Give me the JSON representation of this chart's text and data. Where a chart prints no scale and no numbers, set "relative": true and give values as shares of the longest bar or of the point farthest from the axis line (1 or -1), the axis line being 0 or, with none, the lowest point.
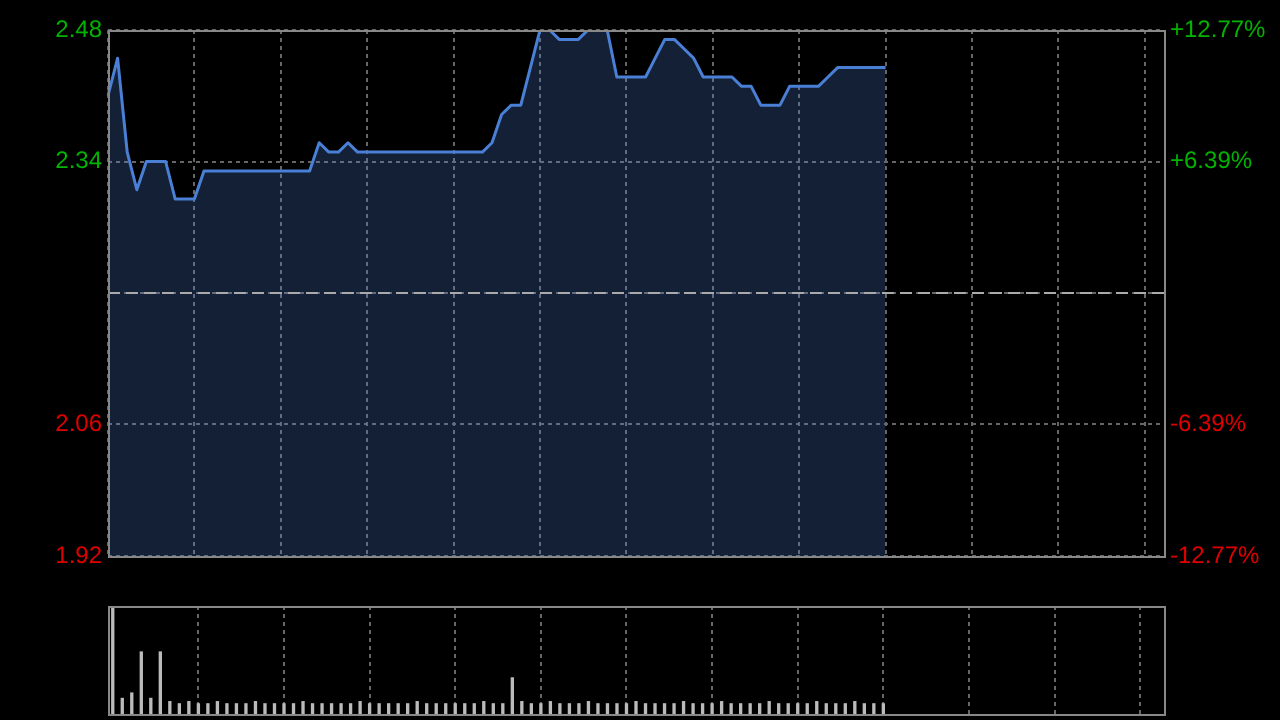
{
  "chart_data": [
    {
      "type": "area",
      "categories": [
        null,
        null,
        null,
        null,
        null,
        null,
        null,
        null,
        null,
        null,
        null,
        null,
        null,
        null,
        null,
        null,
        null,
        null,
        null,
        null,
        null,
        null,
        null,
        null,
        null,
        null,
        null,
        null,
        null,
        null,
        null,
        null,
        null,
        null,
        null,
        null,
        null,
        null,
        null,
        null,
        null,
        null,
        null,
        null,
        null,
        null,
        null,
        null,
        null,
        null,
        null,
        null,
        null,
        null,
        null,
        null,
        null,
        null,
        null,
        null,
        null,
        null,
        null,
        null,
        null,
        null,
        null,
        null,
        null,
        null,
        null,
        null,
        null,
        null,
        null,
        null,
        null,
        null,
        null,
        null,
        null,
        null,
        null,
        null,
        null,
        null,
        null,
        null,
        null,
        null,
        null,
        null,
        null,
        null,
        null,
        null,
        null,
        null,
        null,
        null,
        null,
        null,
        null,
        null,
        null,
        null,
        null,
        null,
        null,
        null,
        null
      ],
      "series": [
        {
          "color": "#4a7fd6",
          "values": [
            2.41,
            2.45,
            2.35,
            2.31,
            2.34,
            2.34,
            2.34,
            2.3,
            2.3,
            2.3,
            2.33,
            2.33,
            2.33,
            2.33,
            2.33,
            2.33,
            2.33,
            2.33,
            2.33,
            2.33,
            2.33,
            2.33,
            2.36,
            2.35,
            2.35,
            2.36,
            2.35,
            2.35,
            2.35,
            2.35,
            2.35,
            2.35,
            2.35,
            2.35,
            2.35,
            2.35,
            2.35,
            2.35,
            2.35,
            2.35,
            2.36,
            2.39,
            2.4,
            2.4,
            2.44,
            2.48,
            2.48,
            2.47,
            2.47,
            2.47,
            2.48,
            2.48,
            2.48,
            2.43,
            2.43,
            2.43,
            2.43,
            2.45,
            2.47,
            2.47,
            2.46,
            2.45,
            2.43,
            2.43,
            2.43,
            2.43,
            2.42,
            2.42,
            2.4,
            2.4,
            2.4,
            2.42,
            2.42,
            2.42,
            2.42,
            2.43,
            2.44,
            2.44,
            2.44,
            2.44,
            2.44,
            2.44,
            null,
            null,
            null,
            null,
            null,
            null,
            null,
            null,
            null,
            null,
            null,
            null,
            null,
            null,
            null,
            null,
            null,
            null,
            null,
            null,
            null,
            null,
            null,
            null,
            null,
            null,
            null,
            null,
            null
          ]
        }
      ],
      "ylim": [
        1.92,
        2.48
      ],
      "yticks": [
        1.92,
        2.06,
        {
          "value": 2.2,
          "label": null
        },
        2.34,
        2.48
      ],
      "y2lim": [
        -12.77,
        12.77
      ],
      "y2ticks": [
        {
          "value": -12.77,
          "label": "-12.77%"
        },
        {
          "value": -6.39,
          "label": "-6.39%"
        },
        {
          "value": 0,
          "label": null
        },
        {
          "value": 6.39,
          "label": "+6.39%"
        },
        {
          "value": 12.77,
          "label": "+12.77%"
        }
      ],
      "ref_lines": [
        {
          "axis": "y",
          "value": 2.2,
          "color": "#aaaaaa",
          "line_style": "dashed"
        }
      ],
      "grid": true,
      "tick_labels": "y",
      "marker": "none",
      "line_style": "solid"
    },
    {
      "type": "bar",
      "relative": true,
      "tick_labels": false,
      "grid": "x",
      "categories": [
        null,
        null,
        null,
        null,
        null,
        null,
        null,
        null,
        null,
        null,
        null,
        null,
        null,
        null,
        null,
        null,
        null,
        null,
        null,
        null,
        null,
        null,
        null,
        null,
        null,
        null,
        null,
        null,
        null,
        null,
        null,
        null,
        null,
        null,
        null,
        null,
        null,
        null,
        null,
        null,
        null,
        null,
        null,
        null,
        null,
        null,
        null,
        null,
        null,
        null,
        null,
        null,
        null,
        null,
        null,
        null,
        null,
        null,
        null,
        null,
        null,
        null,
        null,
        null,
        null,
        null,
        null,
        null,
        null,
        null,
        null,
        null,
        null,
        null,
        null,
        null,
        null,
        null,
        null,
        null,
        null,
        null,
        null,
        null,
        null,
        null,
        null,
        null,
        null,
        null,
        null,
        null,
        null,
        null,
        null,
        null,
        null,
        null,
        null,
        null,
        null,
        null,
        null,
        null,
        null,
        null,
        null,
        null,
        null,
        null,
        null
      ],
      "series": [
        {
          "color": "#bbbbbb",
          "values": [
            1,
            0.15,
            0.2,
            0.58,
            0.15,
            0.58,
            0.12,
            0.1,
            0.12,
            0.1,
            0.1,
            0.12,
            0.1,
            0.1,
            0.1,
            0.12,
            0.1,
            0.1,
            0.1,
            0.1,
            0.12,
            0.1,
            0.1,
            0.1,
            0.1,
            0.1,
            0.12,
            0.1,
            0.1,
            0.1,
            0.1,
            0.1,
            0.12,
            0.1,
            0.1,
            0.1,
            0.1,
            0.1,
            0.1,
            0.12,
            0.1,
            0.1,
            0.34,
            0.12,
            0.1,
            0.1,
            0.12,
            0.1,
            0.1,
            0.1,
            0.12,
            0.1,
            0.1,
            0.1,
            0.1,
            0.12,
            0.1,
            0.1,
            0.1,
            0.1,
            0.12,
            0.1,
            0.1,
            0.1,
            0.12,
            0.1,
            0.1,
            0.1,
            0.1,
            0.12,
            0.1,
            0.1,
            0.1,
            0.1,
            0.12,
            0.1,
            0.1,
            0.1,
            0.12,
            0.1,
            0.1,
            0.1,
            null,
            null,
            null,
            null,
            null,
            null,
            null,
            null,
            null,
            null,
            null,
            null,
            null,
            null,
            null,
            null,
            null,
            null,
            null,
            null,
            null,
            null,
            null,
            null,
            null,
            null,
            null,
            null,
            null
          ]
        }
      ]
    }
  ]
}
